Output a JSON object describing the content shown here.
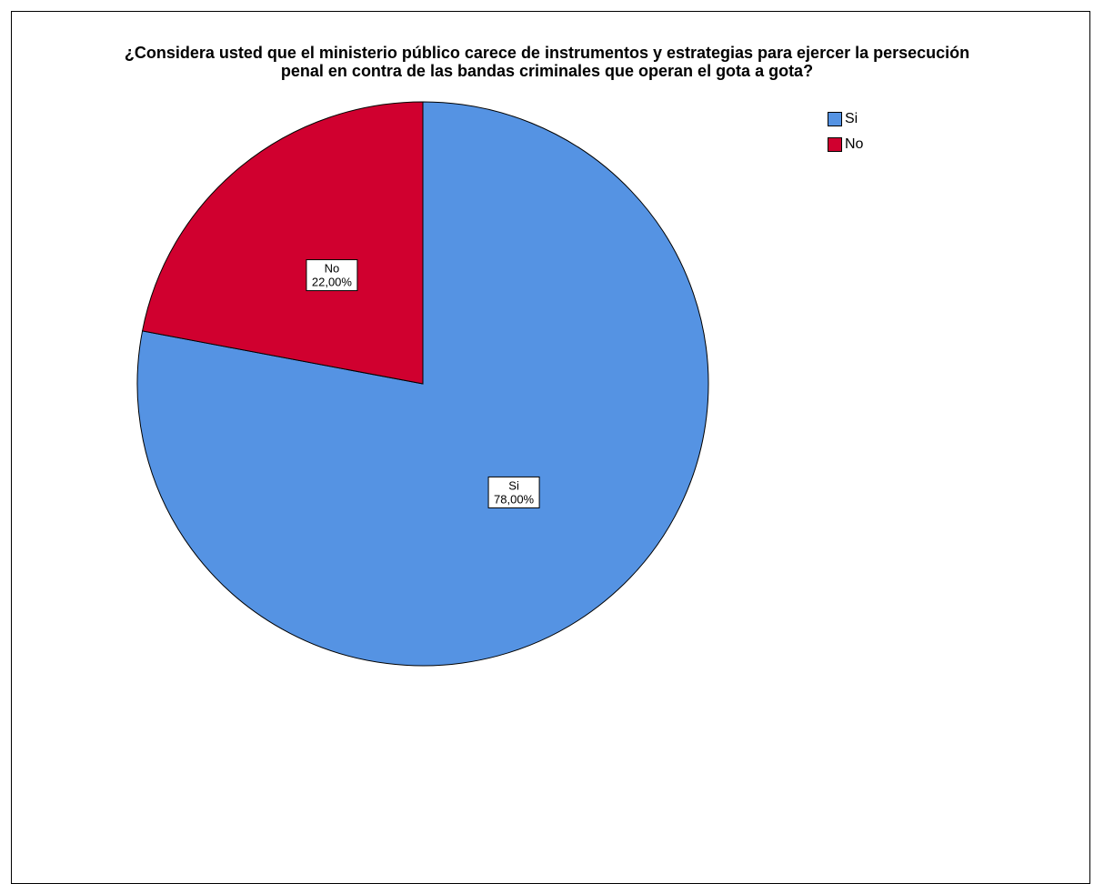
{
  "chart_data": {
    "type": "pie",
    "title_lines": [
      "¿Considera usted que el ministerio público carece de instrumentos y estrategias para ejercer la persecución",
      "penal en contra de las bandas criminales que operan el gota a gota?"
    ],
    "categories": [
      "Si",
      "No"
    ],
    "values": [
      78.0,
      22.0
    ],
    "data_labels": [
      "78,00%",
      "22,00%"
    ],
    "colors": [
      "#5593e3",
      "#d0002f"
    ],
    "legend_position": "top-right",
    "start_angle_deg": 0,
    "direction": "clockwise"
  },
  "legend": {
    "items": [
      {
        "label": "Si",
        "color": "#5593e3"
      },
      {
        "label": "No",
        "color": "#d0002f"
      }
    ]
  }
}
